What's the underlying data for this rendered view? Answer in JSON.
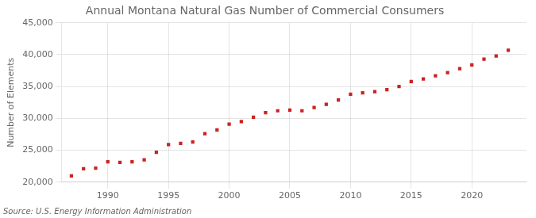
{
  "chart_data": {
    "type": "scatter",
    "title": "Annual Montana Natural Gas Number of Commercial Consumers",
    "ylabel": "Number of Elements",
    "annotation": "Source: U.S. Energy Information Administration",
    "x": [
      1987,
      1988,
      1989,
      1990,
      1991,
      1992,
      1993,
      1994,
      1995,
      1996,
      1997,
      1998,
      1999,
      2000,
      2001,
      2002,
      2003,
      2004,
      2005,
      2006,
      2007,
      2008,
      2009,
      2010,
      2011,
      2012,
      2013,
      2014,
      2015,
      2016,
      2017,
      2018,
      2019,
      2020,
      2021,
      2022,
      2023
    ],
    "values": [
      21000,
      22100,
      22200,
      23200,
      23100,
      23200,
      23500,
      24700,
      25900,
      26100,
      26300,
      27600,
      28200,
      29100,
      29500,
      30200,
      30900,
      31200,
      31300,
      31200,
      31700,
      32200,
      32900,
      33800,
      34000,
      34200,
      34500,
      35000,
      35800,
      36200,
      36700,
      37200,
      37800,
      38400,
      39300,
      39800,
      40700
    ],
    "color": "#cc2222",
    "marker": "square",
    "xlim": [
      1986.2,
      2024.5
    ],
    "xticks": [
      1990,
      1995,
      2000,
      2005,
      2010,
      2015,
      2020
    ],
    "ylim": [
      20000,
      45000
    ],
    "yticks": [
      {
        "value": 20000,
        "label": "20,000"
      },
      {
        "value": 25000,
        "label": "25,000"
      },
      {
        "value": 30000,
        "label": "30,000"
      },
      {
        "value": 35000,
        "label": "35,000"
      },
      {
        "value": 40000,
        "label": "40,000"
      },
      {
        "value": 45000,
        "label": "45,000"
      }
    ],
    "grid": true
  }
}
